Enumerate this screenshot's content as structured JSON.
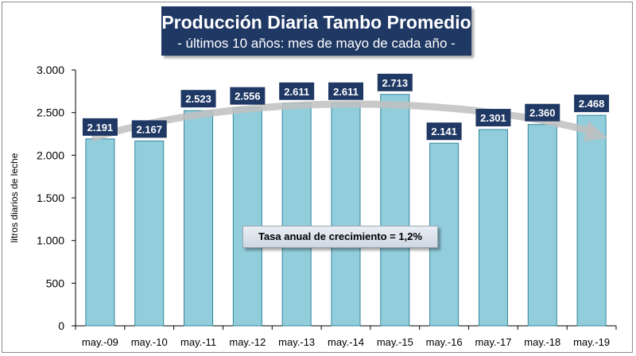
{
  "title": "Producción Diaria Tambo Promedio",
  "subtitle": "- últimos 10 años: mes de mayo de cada año -",
  "annotation": "Tasa anual de crecimiento = 1,2%",
  "colors": {
    "bar_fill": "#92cddc",
    "bar_stroke": "#31869b",
    "label_fill": "#1f3864",
    "title_fill": "#1f3864",
    "trend_arrow": "#bfbfbf"
  },
  "chart_data": {
    "type": "bar",
    "categories": [
      "may.-09",
      "may.-10",
      "may.-11",
      "may.-12",
      "may.-13",
      "may.-14",
      "may.-15",
      "may.-16",
      "may.-17",
      "may.-18",
      "may.-19"
    ],
    "values": [
      2191,
      2167,
      2523,
      2556,
      2611,
      2611,
      2713,
      2141,
      2301,
      2360,
      2468
    ],
    "data_labels": [
      "2.191",
      "2.167",
      "2.523",
      "2.556",
      "2.611",
      "2.611",
      "2.713",
      "2.141",
      "2.301",
      "2.360",
      "2.468"
    ],
    "ylabel": "litros diarios de leche",
    "ylim": [
      0,
      3000
    ],
    "yticks": [
      0,
      500,
      1000,
      1500,
      2000,
      2500,
      3000
    ],
    "ytick_labels": [
      "0",
      "500",
      "1.000",
      "1.500",
      "2.000",
      "2.500",
      "3.000"
    ],
    "grid": false,
    "legend": "none"
  }
}
